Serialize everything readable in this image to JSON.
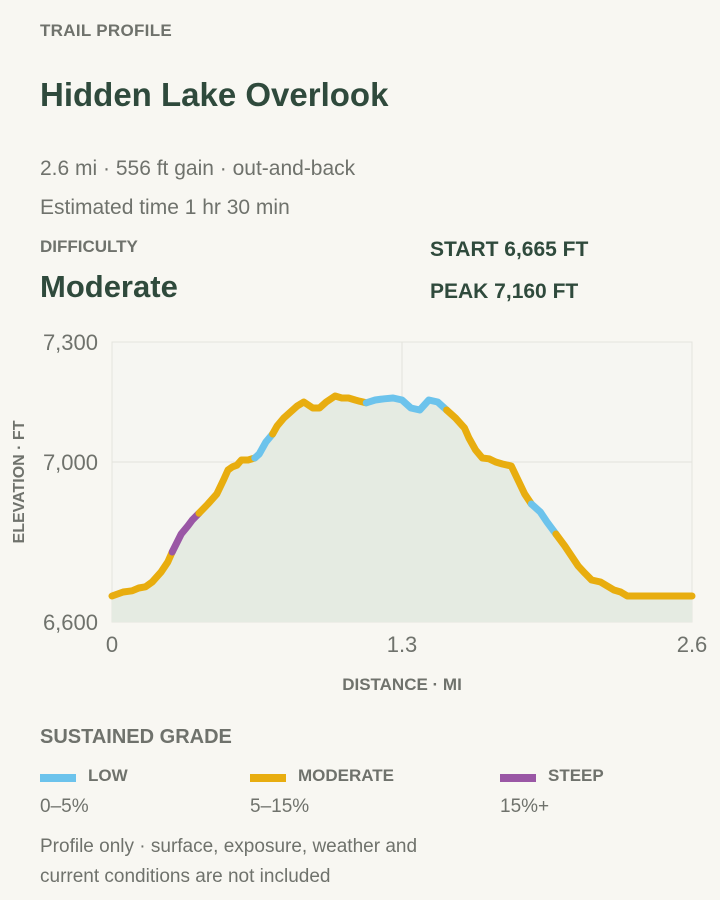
{
  "header": {
    "eyebrow": "TRAIL PROFILE",
    "title": "Hidden Lake Overlook",
    "meta_line1": "2.6 mi · 556 ft gain · out-and-back",
    "meta_line2": "Estimated time 1 hr 30 min"
  },
  "difficulty": {
    "label": "DIFFICULTY",
    "value": "Moderate"
  },
  "stats": {
    "start": "START 6,665 FT",
    "peak": "PEAK 7,160 FT"
  },
  "colors": {
    "low": "#6cc3ec",
    "moderate": "#e8ad0f",
    "steep": "#9a57a5",
    "fill": "#e5ebe2",
    "background": "#f8f7f2",
    "text": "#2f4a3c",
    "muted": "#6f726c"
  },
  "chart_data": {
    "type": "area",
    "xlabel": "DISTANCE · MI",
    "ylabel": "ELEVATION · FT",
    "xlim": [
      0,
      2.6
    ],
    "ylim": [
      6600,
      7300
    ],
    "x_ticks": [
      0,
      1.3,
      2.6
    ],
    "x_tick_labels": [
      "0",
      "1.3",
      "2.6"
    ],
    "y_ticks": [
      6600,
      7000,
      7300
    ],
    "y_tick_labels": [
      "6,600",
      "7,000",
      "7,300"
    ],
    "grid": true,
    "series": [
      {
        "x": [
          0,
          0.05,
          0.09,
          0.12,
          0.15,
          0.18,
          0.22,
          0.25,
          0.27,
          0.31,
          0.34,
          0.36,
          0.39,
          0.43,
          0.47,
          0.5,
          0.52,
          0.54,
          0.56,
          0.58,
          0.61,
          0.64,
          0.66,
          0.69,
          0.72,
          0.74,
          0.77,
          0.8,
          0.83,
          0.86,
          0.9,
          0.93,
          0.96,
          1.0,
          1.03,
          1.06,
          1.09,
          1.11,
          1.14,
          1.18,
          1.22,
          1.26,
          1.3,
          1.34,
          1.38,
          1.42,
          1.46,
          1.5,
          1.54,
          1.58,
          1.6,
          1.63,
          1.66,
          1.69,
          1.72,
          1.75,
          1.79,
          1.82,
          1.85,
          1.88,
          1.92,
          1.95,
          1.99,
          2.03,
          2.06,
          2.09,
          2.12,
          2.15,
          2.19,
          2.22,
          2.25,
          2.28,
          2.31,
          2.34,
          2.37,
          2.4,
          2.43,
          2.46,
          2.49,
          2.52,
          2.55,
          2.58,
          2.6
        ],
        "y": [
          6665,
          6675,
          6678,
          6685,
          6688,
          6700,
          6725,
          6750,
          6775,
          6820,
          6840,
          6855,
          6872,
          6895,
          6920,
          6955,
          6980,
          6988,
          6992,
          7005,
          7005,
          7010,
          7020,
          7050,
          7070,
          7090,
          7110,
          7125,
          7140,
          7150,
          7135,
          7135,
          7150,
          7165,
          7160,
          7160,
          7155,
          7152,
          7148,
          7155,
          7158,
          7160,
          7155,
          7135,
          7130,
          7155,
          7150,
          7130,
          7110,
          7085,
          7060,
          7030,
          7010,
          7008,
          7000,
          6995,
          6990,
          6955,
          6920,
          6895,
          6875,
          6850,
          6820,
          6790,
          6765,
          6740,
          6722,
          6705,
          6700,
          6690,
          6680,
          6675,
          6665,
          6665,
          6665,
          6665,
          6665,
          6665,
          6665,
          6665,
          6665,
          6665,
          6665
        ]
      }
    ],
    "grade_segments": [
      {
        "from": 0,
        "to": 0.27,
        "grade": "moderate"
      },
      {
        "from": 0.27,
        "to": 0.39,
        "grade": "steep"
      },
      {
        "from": 0.39,
        "to": 0.64,
        "grade": "moderate"
      },
      {
        "from": 0.64,
        "to": 0.72,
        "grade": "low"
      },
      {
        "from": 0.72,
        "to": 1.14,
        "grade": "moderate"
      },
      {
        "from": 1.14,
        "to": 1.5,
        "grade": "low"
      },
      {
        "from": 1.5,
        "to": 1.88,
        "grade": "moderate"
      },
      {
        "from": 1.88,
        "to": 1.99,
        "grade": "low"
      },
      {
        "from": 1.99,
        "to": 2.6,
        "grade": "moderate"
      }
    ]
  },
  "legend": {
    "title": "SUSTAINED GRADE",
    "items": [
      {
        "key": "low",
        "label": "LOW",
        "range": "0–5%"
      },
      {
        "key": "moderate",
        "label": "MODERATE",
        "range": "5–15%"
      },
      {
        "key": "steep",
        "label": "STEEP",
        "range": "15%+"
      }
    ]
  },
  "footer": {
    "note": "Profile only · surface, exposure, weather and current conditions are not included"
  }
}
